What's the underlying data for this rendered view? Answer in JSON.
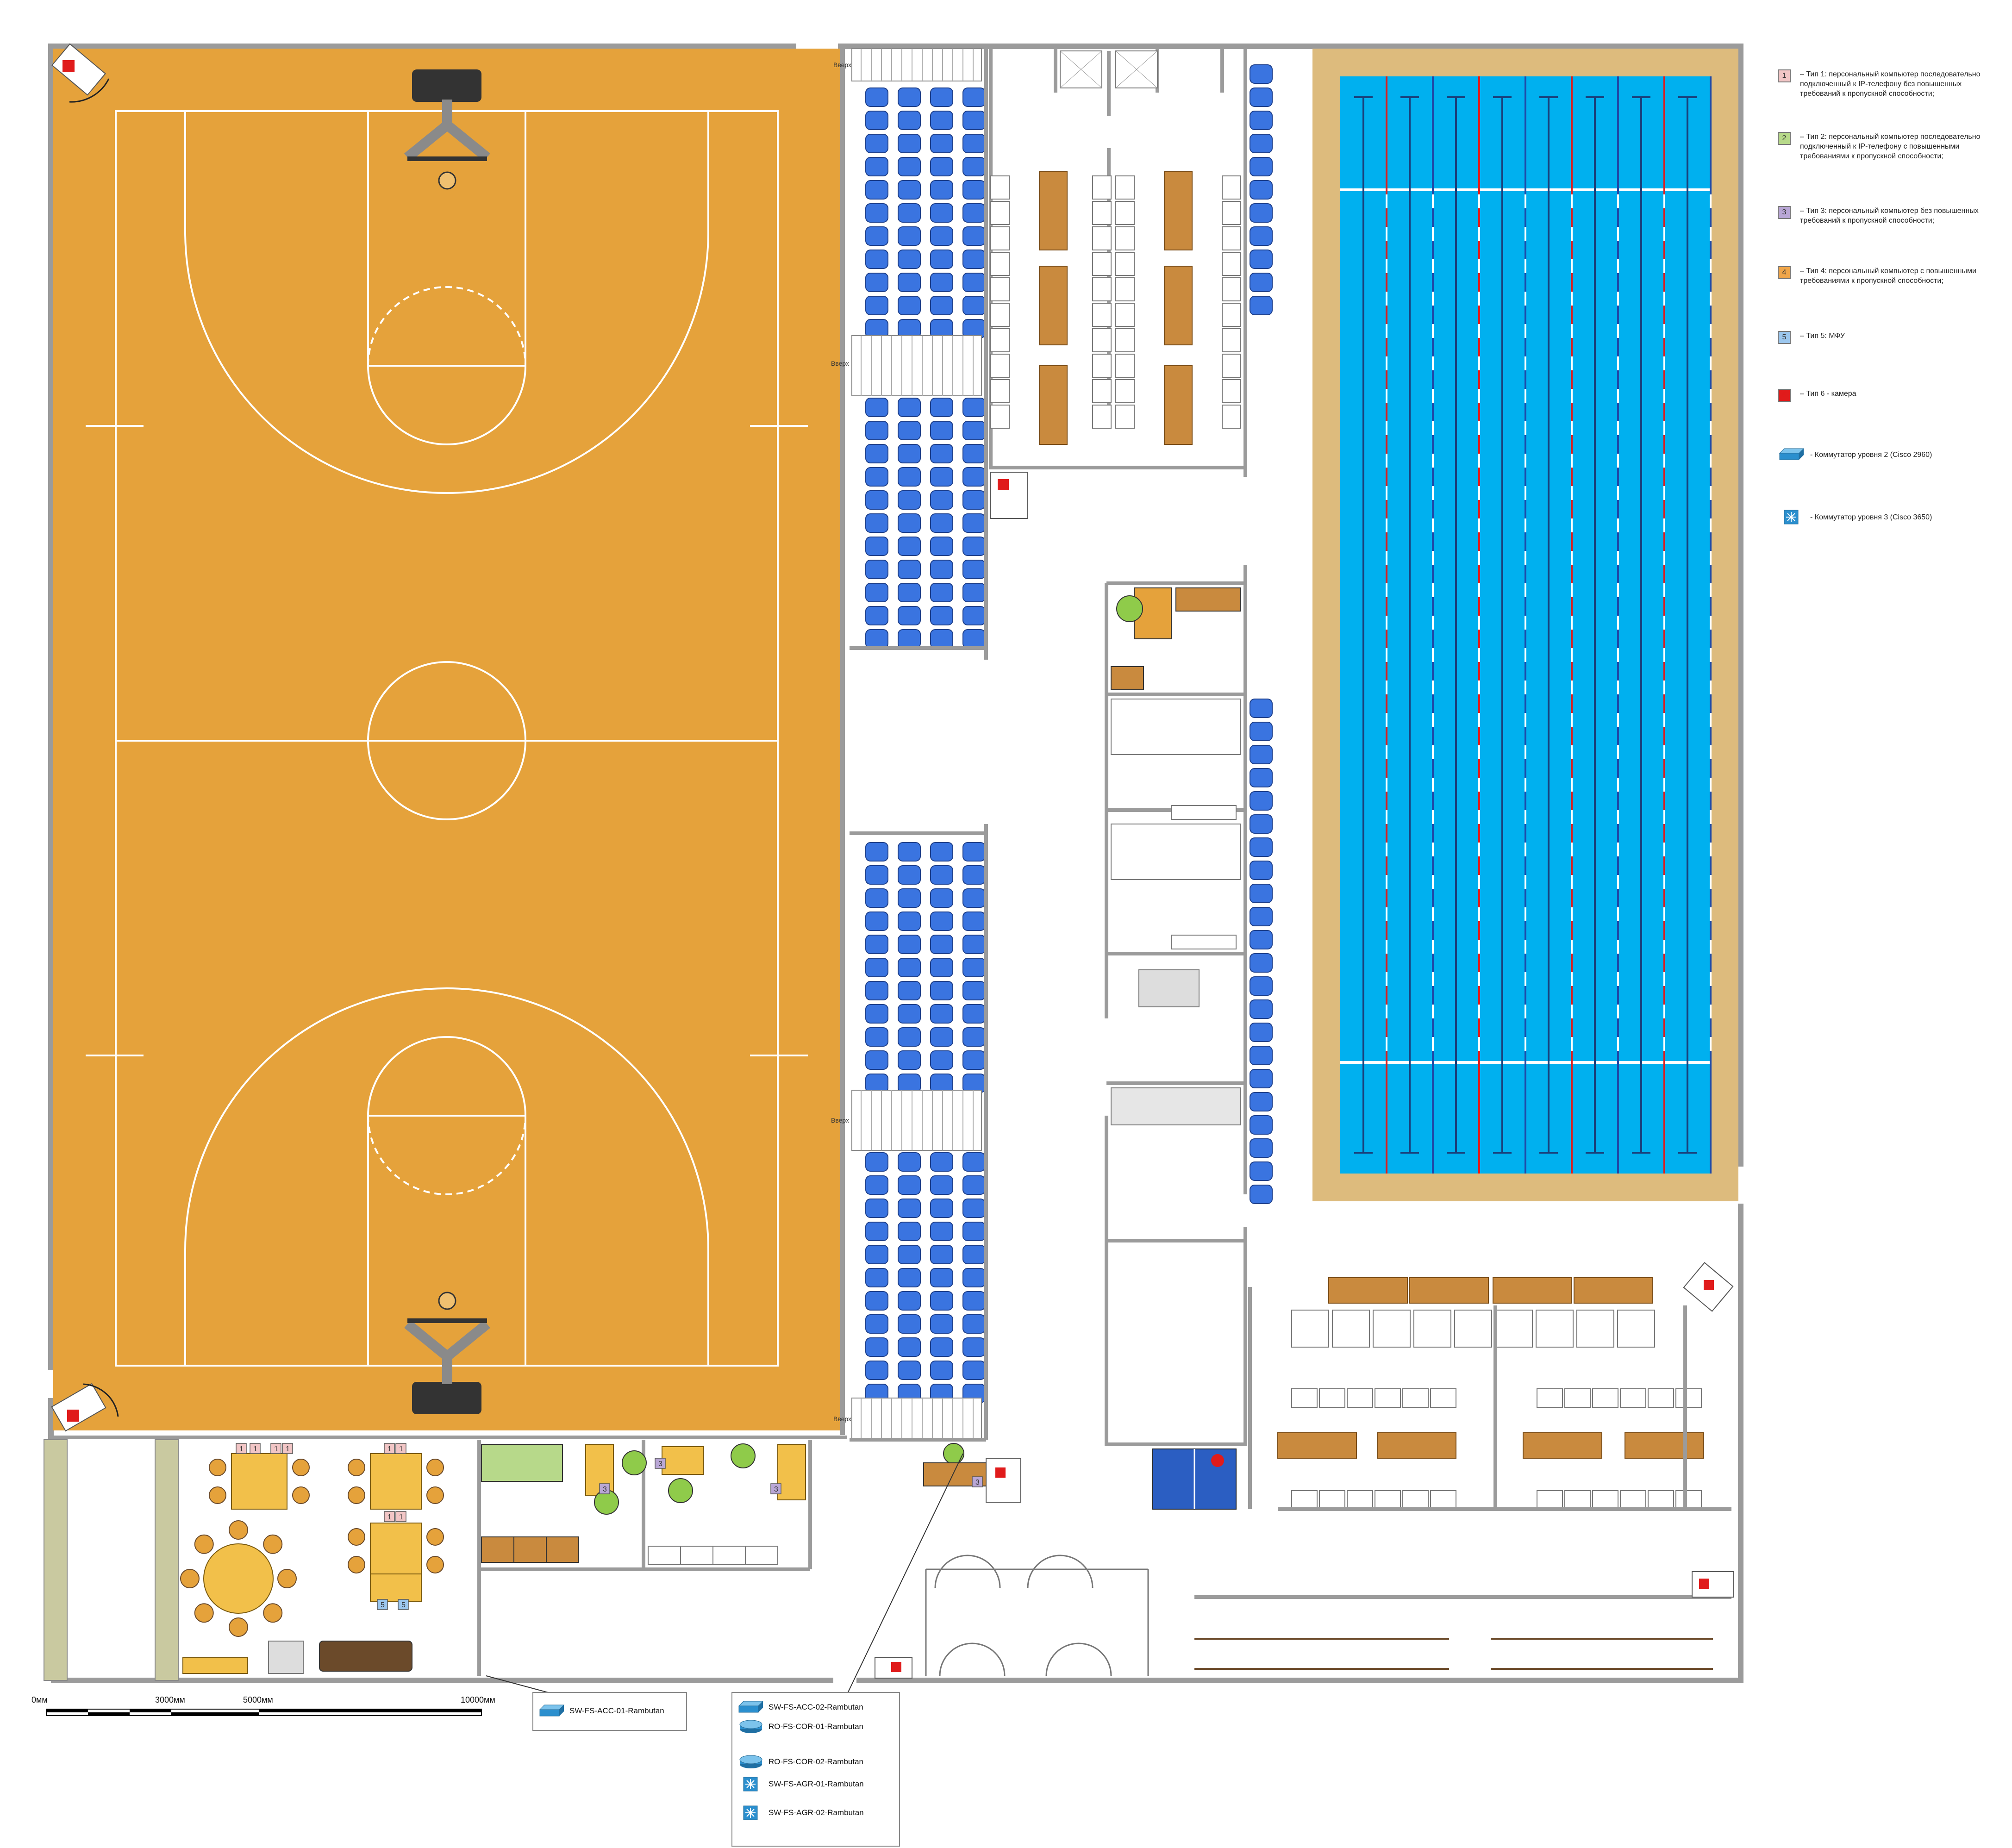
{
  "legend": {
    "items": [
      {
        "badge": "1",
        "color": "#f2c6c6",
        "text": "– Тип 1: персональный компьютер последовательно подключенный к IP-телефону без повышенных требований к пропускной способности;"
      },
      {
        "badge": "2",
        "color": "#b7d98a",
        "text": "– Тип 2: персональный компьютер последовательно подключенный к IP-телефону с повышенными требованиями к пропускной способности;"
      },
      {
        "badge": "3",
        "color": "#b9a7d6",
        "text": "– Тип 3: персональный компьютер без повышенных требований к пропускной способности;"
      },
      {
        "badge": "4",
        "color": "#f0a64a",
        "text": "– Тип 4: персональный компьютер с повышенными требованиями к пропускной способности;"
      },
      {
        "badge": "5",
        "color": "#9cc7ee",
        "text": "– Тип 5: МФУ"
      },
      {
        "badge": "6",
        "color": "#e01b1b",
        "text": "– Тип 6 - камера"
      }
    ],
    "switch_l2": "- Коммутатор уровня 2 (Cisco 2960)",
    "switch_l3": "- Коммутатор уровня 3 (Cisco 3650)"
  },
  "scale": {
    "labels": [
      "0мм",
      "3000мм",
      "5000мм",
      "10000мм"
    ]
  },
  "labels": {
    "acc01": "SW-FS-ACC-01-Rambutan",
    "acc02": "SW-FS-ACC-02-Rambutan",
    "cor01": "RO-FS-COR-01-Rambutan",
    "cor02": "RO-FS-COR-02-Rambutan",
    "agr01": "SW-FS-AGR-01-Rambutan",
    "agr02": "SW-FS-AGR-02-Rambutan"
  },
  "stairs": {
    "label": "Вверх"
  },
  "desk_badges": [
    "1",
    "1",
    "1",
    "1",
    "1",
    "1",
    "1",
    "1",
    "3",
    "3",
    "3",
    "3",
    "5",
    "5"
  ],
  "camera_label": "C",
  "colors": {
    "court": "#e5a23b",
    "pool_water": "#00b0ef",
    "pool_deck": "#ddbb7d",
    "seat": "#3a74e0",
    "wall": "#9b9b9b",
    "table_wood": "#f2c04a",
    "camera": "#e01b1b",
    "tennis": "#2b5ec2"
  }
}
